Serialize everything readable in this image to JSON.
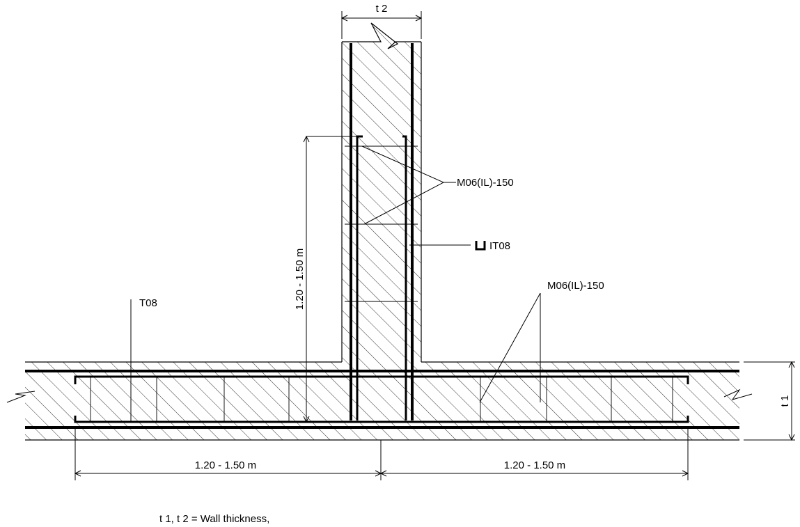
{
  "labels": {
    "t2": "t 2",
    "t1": "t 1",
    "wall_mesh": "M06(IL)-150",
    "floor_mesh": "M06(IL)-150",
    "wall_bar": "IT08",
    "floor_bar": "T08",
    "vertical_lap": "1.20 - 1.50 m",
    "left_lap": "1.20 - 1.50 m",
    "right_lap": "1.20 - 1.50 m"
  },
  "note": "t 1,  t 2  =  Wall thickness,"
}
